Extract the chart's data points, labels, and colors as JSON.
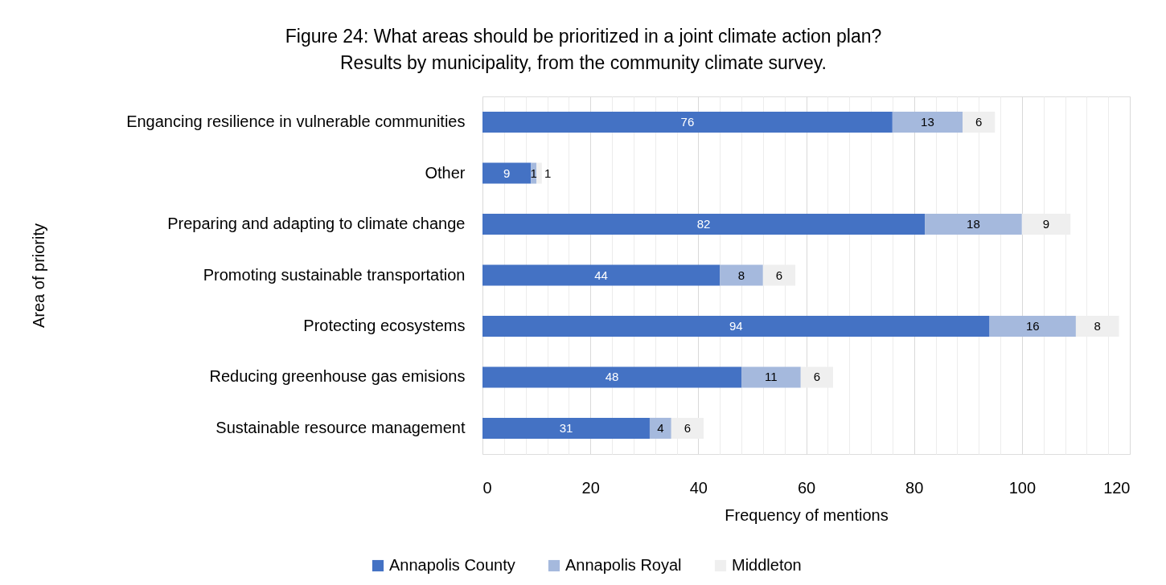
{
  "chart_data": {
    "type": "bar",
    "orientation": "horizontal",
    "stacked": true,
    "title": "Figure 24: What areas should be prioritized in a joint climate action plan?",
    "subtitle": "Results by municipality, from the community climate survey.",
    "xlabel": "Frequency of mentions",
    "ylabel": "Area of priority",
    "categories": [
      "Engancing resilience in vulnerable communities",
      "Other",
      "Preparing and adapting to climate change",
      "Promoting sustainable transportation",
      "Protecting ecosystems",
      "Reducing greenhouse gas emisions",
      "Sustainable resource management"
    ],
    "series": [
      {
        "name": "Annapolis County",
        "color": "#4472c4",
        "values": [
          76,
          9,
          82,
          44,
          94,
          48,
          31
        ]
      },
      {
        "name": "Annapolis Royal",
        "color": "#a5b9dd",
        "values": [
          13,
          1,
          18,
          8,
          16,
          11,
          4
        ]
      },
      {
        "name": "Middleton",
        "color": "#efefef",
        "values": [
          6,
          1,
          9,
          6,
          8,
          6,
          6
        ]
      }
    ],
    "xlim": [
      0,
      120
    ],
    "xticks": [
      0,
      {
        "value": 4,
        "label": null
      },
      {
        "value": 8,
        "label": null
      },
      {
        "value": 12,
        "label": null
      },
      {
        "value": 16,
        "label": null
      },
      20,
      {
        "value": 24,
        "label": null
      },
      {
        "value": 28,
        "label": null
      },
      {
        "value": 32,
        "label": null
      },
      {
        "value": 36,
        "label": null
      },
      40,
      {
        "value": 44,
        "label": null
      },
      {
        "value": 48,
        "label": null
      },
      {
        "value": 52,
        "label": null
      },
      {
        "value": 56,
        "label": null
      },
      60,
      {
        "value": 64,
        "label": null
      },
      {
        "value": 68,
        "label": null
      },
      {
        "value": 72,
        "label": null
      },
      {
        "value": 76,
        "label": null
      },
      80,
      {
        "value": 84,
        "label": null
      },
      {
        "value": 88,
        "label": null
      },
      {
        "value": 92,
        "label": null
      },
      {
        "value": 96,
        "label": null
      },
      100,
      {
        "value": 104,
        "label": null
      },
      {
        "value": 108,
        "label": null
      },
      {
        "value": 112,
        "label": null
      },
      {
        "value": 116,
        "label": null
      },
      120
    ],
    "grid": "x",
    "legend": "bottom",
    "data_labels": true
  }
}
